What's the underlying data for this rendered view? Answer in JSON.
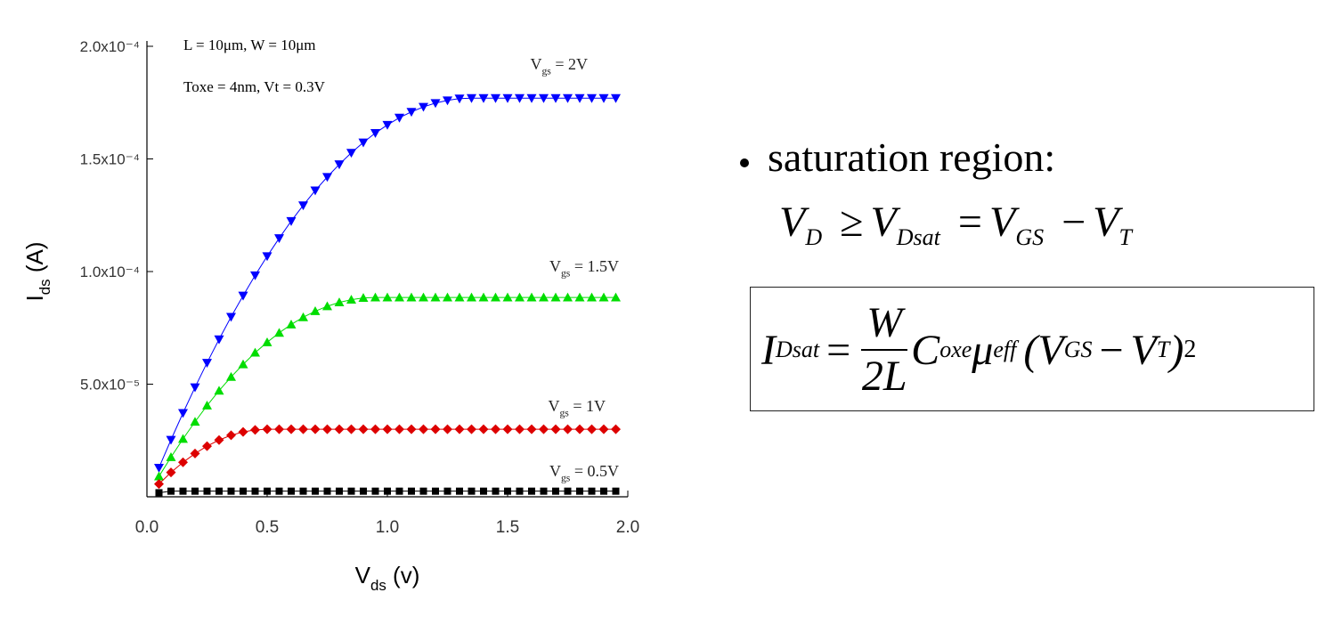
{
  "chart_data": {
    "type": "line",
    "x_label": "Vds (v)",
    "y_label": "Ids (A)",
    "annotations": [
      "L = 10μm, W = 10μm",
      "Toxe = 4nm, Vt = 0.3V"
    ],
    "x": [
      0.05,
      0.1,
      0.15,
      0.2,
      0.25,
      0.3,
      0.35,
      0.4,
      0.45,
      0.5,
      0.55,
      0.6,
      0.65,
      0.7,
      0.75,
      0.8,
      0.85,
      0.9,
      0.95,
      1.0,
      1.05,
      1.1,
      1.15,
      1.2,
      1.25,
      1.3,
      1.35,
      1.4,
      1.45,
      1.5,
      1.55,
      1.6,
      1.65,
      1.7,
      1.75,
      1.8,
      1.85,
      1.9,
      1.95
    ],
    "series": [
      {
        "name": "Vgs = 2V",
        "color": "#0000ff",
        "marker": "triangle-down",
        "values": [
          1.29e-05,
          2.53e-05,
          3.72e-05,
          4.86e-05,
          5.95e-05,
          6.99e-05,
          7.99e-05,
          8.93e-05,
          9.83e-05,
          0.0001068,
          0.0001148,
          0.0001224,
          0.0001294,
          0.000136,
          0.000142,
          0.0001476,
          0.0001527,
          0.0001573,
          0.0001615,
          0.0001651,
          0.0001683,
          0.0001709,
          0.0001731,
          0.0001748,
          0.000176,
          0.0001768,
          0.000177,
          0.000177,
          0.000177,
          0.000177,
          0.000177,
          0.000177,
          0.000177,
          0.000177,
          0.000177,
          0.000177,
          0.000177,
          0.000177,
          0.000177
        ]
      },
      {
        "name": "Vgs = 1.5V",
        "color": "#00dd00",
        "marker": "triangle-up",
        "values": [
          9.07e-06,
          1.76e-05,
          2.57e-05,
          3.33e-05,
          4.05e-05,
          4.71e-05,
          5.32e-05,
          5.88e-05,
          6.4e-05,
          6.86e-05,
          7.28e-05,
          7.65e-05,
          7.97e-05,
          8.24e-05,
          8.46e-05,
          8.63e-05,
          8.75e-05,
          8.83e-05,
          8.85e-05,
          8.85e-05,
          8.85e-05,
          8.85e-05,
          8.85e-05,
          8.85e-05,
          8.85e-05,
          8.85e-05,
          8.85e-05,
          8.85e-05,
          8.85e-05,
          8.85e-05,
          8.85e-05,
          8.85e-05,
          8.85e-05,
          8.85e-05,
          8.85e-05,
          8.85e-05,
          8.85e-05,
          8.85e-05,
          8.85e-05
        ]
      },
      {
        "name": "Vgs = 1V",
        "color": "#dd0000",
        "marker": "diamond",
        "values": [
          5.7e-06,
          1.08e-05,
          1.53e-05,
          1.92e-05,
          2.25e-05,
          2.52e-05,
          2.73e-05,
          2.88e-05,
          2.97e-05,
          3e-05,
          3e-05,
          3e-05,
          3e-05,
          3e-05,
          3e-05,
          3e-05,
          3e-05,
          3e-05,
          3e-05,
          3e-05,
          3e-05,
          3e-05,
          3e-05,
          3e-05,
          3e-05,
          3e-05,
          3e-05,
          3e-05,
          3e-05,
          3e-05,
          3e-05,
          3e-05,
          3e-05,
          3e-05,
          3e-05,
          3e-05,
          3e-05,
          3e-05,
          3e-05
        ]
      },
      {
        "name": "Vgs = 0.5V",
        "color": "#000000",
        "marker": "square",
        "values": [
          1.8e-06,
          2.5e-06,
          2.5e-06,
          2.5e-06,
          2.5e-06,
          2.5e-06,
          2.5e-06,
          2.5e-06,
          2.5e-06,
          2.5e-06,
          2.5e-06,
          2.5e-06,
          2.5e-06,
          2.5e-06,
          2.5e-06,
          2.5e-06,
          2.5e-06,
          2.5e-06,
          2.5e-06,
          2.5e-06,
          2.5e-06,
          2.5e-06,
          2.5e-06,
          2.5e-06,
          2.5e-06,
          2.5e-06,
          2.5e-06,
          2.5e-06,
          2.5e-06,
          2.5e-06,
          2.5e-06,
          2.5e-06,
          2.5e-06,
          2.5e-06,
          2.5e-06,
          2.5e-06,
          2.5e-06,
          2.5e-06,
          2.5e-06
        ]
      }
    ],
    "xlim": [
      0,
      2
    ],
    "xticks": [
      {
        "value": 0,
        "label": "0.0"
      },
      0.5,
      {
        "value": 1,
        "label": "1.0"
      },
      1.5,
      {
        "value": 2,
        "label": "2.0"
      }
    ],
    "ylim": [
      0,
      0.0002
    ],
    "yticks": [
      {
        "value": 5e-05,
        "label": "5.0x10⁻⁵"
      },
      {
        "value": 0.0001,
        "label": "1.0x10⁻⁴"
      },
      {
        "value": 0.00015,
        "label": "1.5x10⁻⁴"
      },
      {
        "value": 0.0002,
        "label": "2.0x10⁻⁴"
      }
    ],
    "grid": false
  },
  "slide": {
    "bullet": "saturation region:",
    "condition": [
      "V",
      "D",
      "≥",
      "V",
      "Dsat",
      "=",
      "V",
      "GS",
      "−",
      "V",
      "T"
    ],
    "formula": {
      "lhs": [
        "I",
        "Dsat",
        "="
      ],
      "numerator": "W",
      "denominator": "2L",
      "rhs": [
        "C",
        "oxe",
        "μ",
        "eff",
        "(V",
        "GS",
        "−",
        "V",
        "T",
        ")",
        "2"
      ]
    }
  }
}
